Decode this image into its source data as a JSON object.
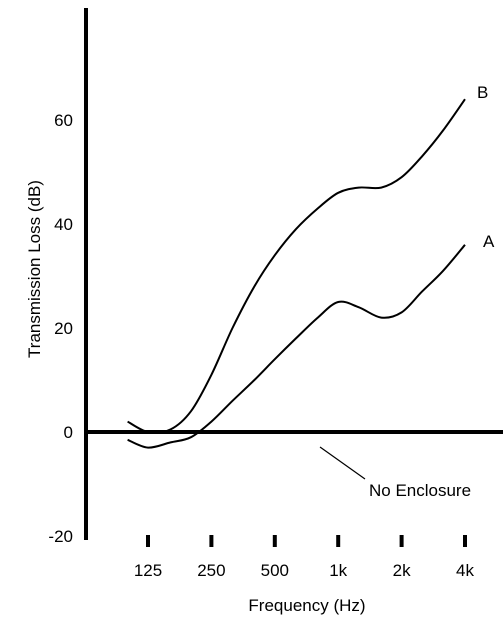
{
  "chart_data": {
    "type": "line",
    "title": "",
    "xlabel": "Frequency (Hz)",
    "ylabel": "Transmission Loss (dB)",
    "x_ticks": [
      "125",
      "250",
      "500",
      "1k",
      "2k",
      "4k"
    ],
    "y_ticks": [
      60,
      40,
      20,
      0,
      -20
    ],
    "ylim": [
      -20,
      80
    ],
    "grid": false,
    "legend": "none",
    "series": [
      {
        "name": "B",
        "x": [
          "100",
          "125",
          "160",
          "200",
          "250",
          "315",
          "400",
          "500",
          "630",
          "800",
          "1k",
          "1.25k",
          "1.6k",
          "2k",
          "2.5k",
          "3.15k",
          "4k"
        ],
        "values": [
          2,
          0,
          0.5,
          4,
          11,
          20,
          28,
          34,
          39,
          43,
          46,
          47,
          47,
          49,
          53,
          58,
          64
        ]
      },
      {
        "name": "A",
        "x": [
          "100",
          "125",
          "160",
          "200",
          "250",
          "315",
          "400",
          "500",
          "630",
          "800",
          "1k",
          "1.25k",
          "1.6k",
          "2k",
          "2.5k",
          "3.15k",
          "4k"
        ],
        "values": [
          -1.5,
          -3,
          -2,
          -1,
          2,
          6,
          10,
          14,
          18,
          22,
          25,
          24,
          22,
          23,
          27,
          31,
          36
        ]
      },
      {
        "name": "No Enclosure",
        "x": [
          "125",
          "4k"
        ],
        "values": [
          0,
          0
        ]
      }
    ],
    "annotations": [
      "B",
      "A",
      "No Enclosure"
    ]
  }
}
